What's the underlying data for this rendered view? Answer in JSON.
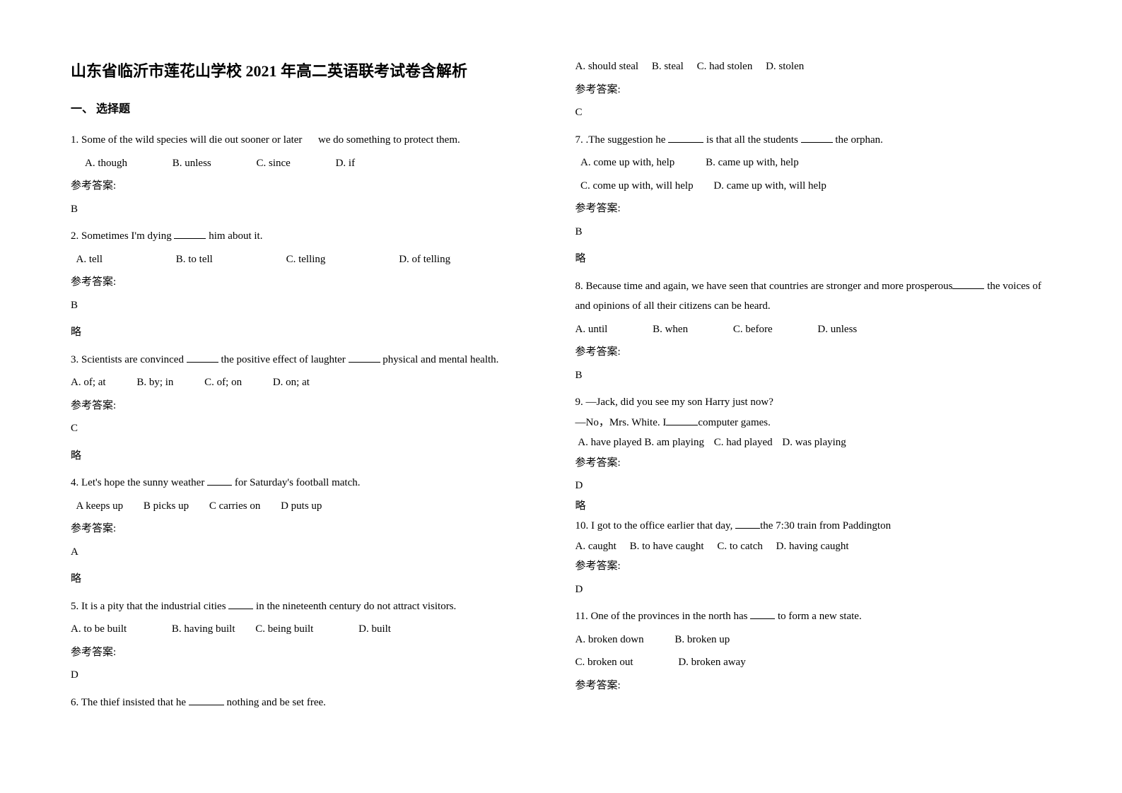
{
  "title": "山东省临沂市莲花山学校 2021 年高二英语联考试卷含解析",
  "section_header": "一、 选择题",
  "answer_label": "参考答案:",
  "note_text": "略",
  "colors": {
    "background": "#ffffff",
    "text": "#000000"
  },
  "typography": {
    "title_fontsize": 22,
    "body_fontsize": 15,
    "section_fontsize": 16,
    "font_family": "SimSun"
  },
  "left": {
    "q1": {
      "text_a": "1. Some of the wild species will die out sooner or later",
      "text_b": "we do something to protect them.",
      "optA": "A. though",
      "optB": "B. unless",
      "optC": "C. since",
      "optD": "D. if",
      "answer": "B"
    },
    "q2": {
      "text_a": "2. Sometimes I'm dying ",
      "text_b": " him about it.",
      "optA": "A. tell",
      "optB": "B. to tell",
      "optC": "C. telling",
      "optD": "D. of telling",
      "answer": "B"
    },
    "q3": {
      "text_a": "3. Scientists are convinced ",
      "text_b": " the positive effect of laughter ",
      "text_c": " physical and mental health.",
      "optA": "A. of; at",
      "optB": "B. by; in",
      "optC": "C. of; on",
      "optD": "D. on; at",
      "answer": "C"
    },
    "q4": {
      "text_a": "4. Let's hope the sunny weather ",
      "text_b": " for Saturday's football match.",
      "optA": "A keeps up",
      "optB": "B picks up",
      "optC": "C carries on",
      "optD": "D puts up",
      "answer": "A"
    },
    "q5": {
      "text_a": "5. It is a pity that the industrial cities ",
      "text_b": " in the nineteenth century do not attract visitors.",
      "optA": "A. to be built",
      "optB": "B. having built",
      "optC": "C. being built",
      "optD": "D. built",
      "answer": "D"
    },
    "q6": {
      "text_a": "6. The thief insisted that he ",
      "text_b": " nothing and be set free."
    }
  },
  "right": {
    "q6_opts": {
      "optA": "A. should steal",
      "optB": "B. steal",
      "optC": "C. had stolen",
      "optD": "D. stolen",
      "answer": "C"
    },
    "q7": {
      "text_a": "7. .The suggestion he ",
      "text_b": " is that all the students ",
      "text_c": " the orphan.",
      "optA": "A. come up with, help",
      "optB": "B. came up with, help",
      "optC": "C. come up with, will help",
      "optD": "D. came up with, will help",
      "answer": "B"
    },
    "q8": {
      "text_a": "8. Because time and again, we have seen that countries are stronger and more prosperous",
      "text_b": " the voices of and opinions of all their citizens can be heard.",
      "optA": "A. until",
      "optB": "B. when",
      "optC": "C. before",
      "optD": "D. unless",
      "answer": "B"
    },
    "q9": {
      "line1": "9. —Jack, did you see my son Harry just now?",
      "line2a": "—No，Mrs. White. I",
      "line2b": "computer games.",
      "optA": "A. have played",
      "optB": "B. am playing",
      "optC": "C. had played",
      "optD": "D. was playing",
      "answer": "D"
    },
    "q10": {
      "text_a": "10. I got to the office earlier that day, ",
      "text_b": "the 7:30 train from Paddington",
      "optA": "A. caught",
      "optB": "B. to have caught",
      "optC": "C. to catch",
      "optD": "D. having caught",
      "answer": "D"
    },
    "q11": {
      "text_a": "11. One of the provinces in the north has ",
      "text_b": " to form a new state.",
      "optA": "A. broken down",
      "optB": "B. broken up",
      "optC": "C. broken out",
      "optD": "D. broken away"
    }
  }
}
